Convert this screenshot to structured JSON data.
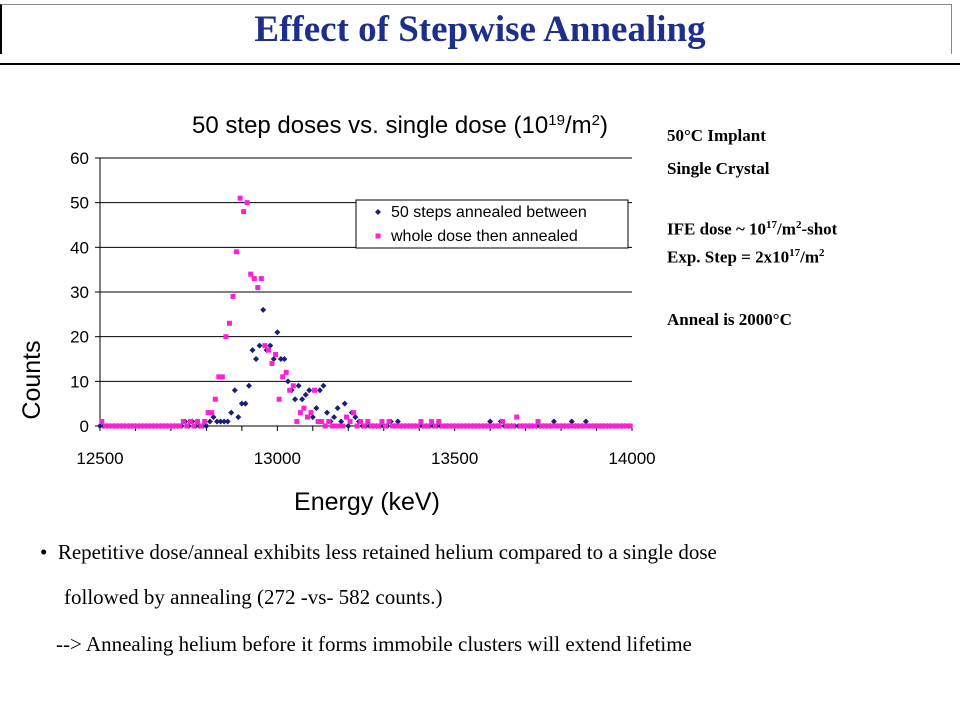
{
  "title": "Effect of Stepwise Annealing",
  "notes": {
    "implant_temp": "50°C Implant",
    "crystal": "Single Crystal",
    "ife_dose": "IFE dose ~ 10^17/m^2-shot",
    "exp_step": "Exp. Step = 2x10^17/m^2",
    "anneal": "Anneal is 2000°C"
  },
  "bullets": {
    "line1": "Repetitive dose/anneal exhibits less retained helium compared to a single dose",
    "line2": "followed by annealing (272 -vs- 582 counts.)",
    "line3": "-->  Annealing helium before it forms immobile clusters will extend lifetime"
  },
  "chart_data": {
    "type": "scatter",
    "title": "50 step doses vs. single dose (10^19/m^2)",
    "xlabel": "Energy (keV)",
    "ylabel": "Counts",
    "xlim": [
      12500,
      14000
    ],
    "ylim": [
      0,
      60
    ],
    "xticks": [
      12500,
      13000,
      13500,
      14000
    ],
    "yticks": [
      0,
      10,
      20,
      30,
      40,
      50,
      60
    ],
    "grid": "horizontal",
    "legend_position": "top-right",
    "series": [
      {
        "name": "50 steps annealed between",
        "color": "#1a1f7a",
        "marker": "diamond",
        "x": [
          12500,
          12510,
          12520,
          12530,
          12540,
          12550,
          12560,
          12570,
          12580,
          12590,
          12600,
          12610,
          12620,
          12630,
          12640,
          12650,
          12660,
          12670,
          12680,
          12690,
          12700,
          12710,
          12720,
          12730,
          12740,
          12750,
          12760,
          12770,
          12780,
          12790,
          12800,
          12810,
          12820,
          12830,
          12840,
          12850,
          12860,
          12870,
          12880,
          12890,
          12900,
          12910,
          12920,
          12930,
          12940,
          12950,
          12960,
          12970,
          12980,
          12990,
          13000,
          13010,
          13020,
          13030,
          13040,
          13050,
          13060,
          13070,
          13080,
          13090,
          13100,
          13110,
          13120,
          13130,
          13140,
          13150,
          13160,
          13170,
          13180,
          13190,
          13200,
          13210,
          13220,
          13230,
          13240,
          13250,
          13260,
          13270,
          13280,
          13290,
          13300,
          13310,
          13320,
          13330,
          13340,
          13350,
          13360,
          13370,
          13380,
          13390,
          13400,
          13410,
          13420,
          13430,
          13440,
          13450,
          13460,
          13470,
          13480,
          13490,
          13500,
          13510,
          13520,
          13530,
          13540,
          13550,
          13560,
          13570,
          13580,
          13590,
          13600,
          13610,
          13620,
          13630,
          13640,
          13650,
          13660,
          13670,
          13680,
          13690,
          13700,
          13710,
          13720,
          13730,
          13740,
          13750,
          13760,
          13770,
          13780,
          13790,
          13800,
          13810,
          13820,
          13830,
          13840,
          13850,
          13860,
          13870,
          13880,
          13890,
          13900,
          13910,
          13920,
          13930,
          13940,
          13950,
          13960,
          13970,
          13980,
          13990
        ],
        "y": [
          0,
          0,
          0,
          0,
          0,
          0,
          0,
          0,
          0,
          0,
          0,
          0,
          0,
          0,
          0,
          0,
          0,
          0,
          0,
          0,
          0,
          0,
          0,
          0,
          1,
          0,
          1,
          0,
          0,
          0,
          0,
          1,
          2,
          1,
          1,
          1,
          1,
          3,
          8,
          2,
          5,
          5,
          9,
          17,
          15,
          18,
          26,
          17,
          18,
          15,
          21,
          15,
          15,
          10,
          8,
          6,
          9,
          6,
          7,
          8,
          2,
          4,
          8,
          9,
          3,
          1,
          2,
          4,
          1,
          5,
          0,
          3,
          2,
          1,
          0,
          0,
          0,
          0,
          0,
          0,
          0,
          0,
          1,
          0,
          1,
          0,
          0,
          0,
          0,
          0,
          0,
          0,
          0,
          0,
          0,
          0,
          0,
          0,
          0,
          0,
          0,
          0,
          0,
          0,
          0,
          0,
          0,
          0,
          0,
          0,
          1,
          0,
          0,
          1,
          0,
          0,
          0,
          0,
          0,
          0,
          0,
          0,
          0,
          0,
          0,
          0,
          0,
          0,
          1,
          0,
          0,
          0,
          0,
          1,
          0,
          0,
          0,
          1,
          0,
          0,
          0,
          0,
          0,
          0,
          0,
          0,
          0,
          0,
          0,
          0
        ]
      },
      {
        "name": "whole dose then annealed",
        "color": "#ff1fd4",
        "marker": "square",
        "x": [
          12505,
          12515,
          12525,
          12535,
          12545,
          12555,
          12565,
          12575,
          12585,
          12595,
          12605,
          12615,
          12625,
          12635,
          12645,
          12655,
          12665,
          12675,
          12685,
          12695,
          12705,
          12715,
          12725,
          12735,
          12745,
          12755,
          12765,
          12775,
          12785,
          12795,
          12805,
          12815,
          12825,
          12835,
          12845,
          12855,
          12865,
          12875,
          12885,
          12895,
          12905,
          12915,
          12925,
          12935,
          12945,
          12955,
          12965,
          12975,
          12985,
          12995,
          13005,
          13015,
          13025,
          13035,
          13045,
          13055,
          13065,
          13075,
          13085,
          13095,
          13105,
          13115,
          13125,
          13135,
          13145,
          13155,
          13165,
          13175,
          13185,
          13195,
          13205,
          13215,
          13225,
          13235,
          13245,
          13255,
          13265,
          13275,
          13285,
          13295,
          13305,
          13315,
          13325,
          13335,
          13345,
          13355,
          13365,
          13375,
          13385,
          13395,
          13405,
          13415,
          13425,
          13435,
          13445,
          13455,
          13465,
          13475,
          13485,
          13495,
          13505,
          13515,
          13525,
          13535,
          13545,
          13555,
          13565,
          13575,
          13585,
          13595,
          13605,
          13615,
          13625,
          13635,
          13645,
          13655,
          13665,
          13675,
          13685,
          13695,
          13705,
          13715,
          13725,
          13735,
          13745,
          13755,
          13765,
          13775,
          13785,
          13795,
          13805,
          13815,
          13825,
          13835,
          13845,
          13855,
          13865,
          13875,
          13885,
          13895,
          13905,
          13915,
          13925,
          13935,
          13945,
          13955,
          13965,
          13975,
          13985,
          13995
        ],
        "y": [
          1,
          0,
          0,
          0,
          0,
          0,
          0,
          0,
          0,
          0,
          0,
          0,
          0,
          0,
          0,
          0,
          0,
          0,
          0,
          0,
          0,
          0,
          0,
          1,
          0,
          1,
          0,
          1,
          0,
          1,
          3,
          3,
          6,
          11,
          11,
          20,
          23,
          29,
          39,
          51,
          48,
          50,
          34,
          33,
          31,
          33,
          18,
          17,
          14,
          16,
          6,
          11,
          12,
          8,
          9,
          1,
          3,
          4,
          2,
          3,
          8,
          1,
          1,
          0,
          1,
          0,
          0,
          0,
          0,
          2,
          1,
          3,
          0,
          1,
          0,
          1,
          0,
          0,
          0,
          1,
          0,
          1,
          0,
          0,
          0,
          0,
          0,
          0,
          0,
          0,
          1,
          0,
          0,
          1,
          0,
          1,
          0,
          0,
          0,
          0,
          0,
          0,
          0,
          0,
          0,
          0,
          0,
          0,
          0,
          0,
          0,
          0,
          0,
          1,
          0,
          0,
          0,
          2,
          0,
          0,
          0,
          0,
          0,
          1,
          0,
          0,
          0,
          0,
          0,
          0,
          0,
          0,
          0,
          0,
          0,
          0,
          0,
          0,
          0,
          0,
          0,
          0,
          0,
          0,
          0,
          0,
          0,
          0,
          0,
          0
        ]
      }
    ]
  }
}
